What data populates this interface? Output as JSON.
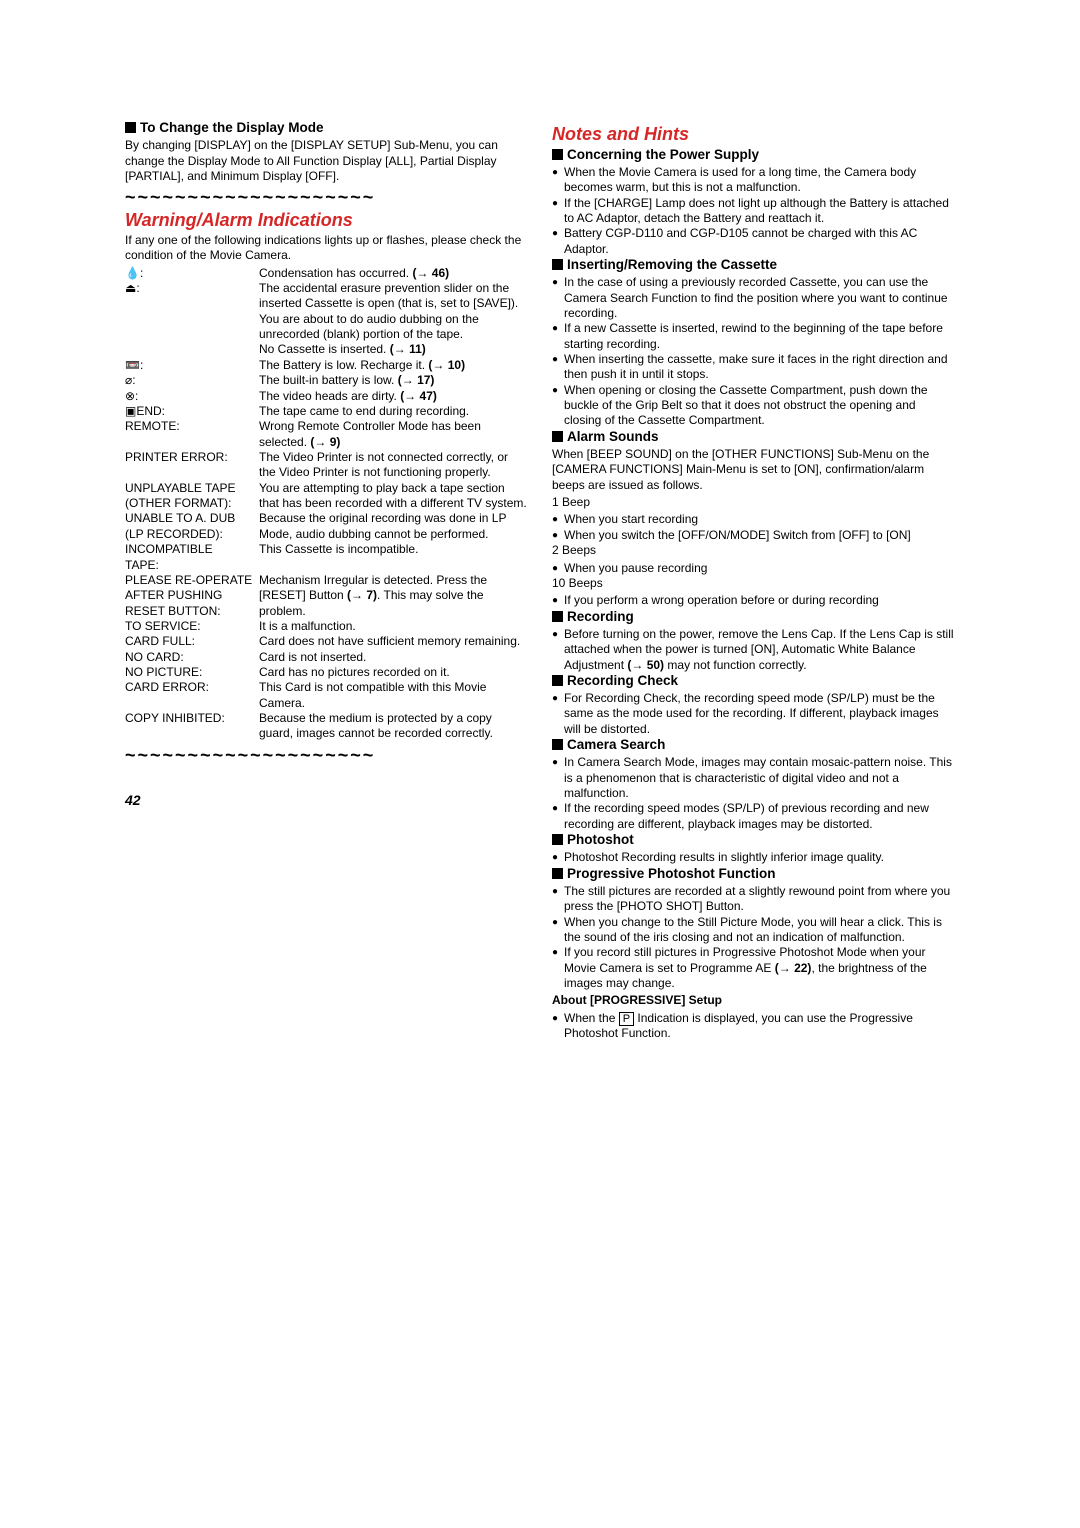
{
  "pageNumber": "42",
  "leftCol": {
    "displayMode": {
      "title": "To Change the Display Mode",
      "body": "By changing [DISPLAY] on the [DISPLAY SETUP] Sub-Menu, you can change the Display Mode to All Function Display [ALL], Partial Display [PARTIAL], and Minimum Display [OFF]."
    },
    "tildeRow": "~~~~~~~~~~~~~~~~~~~~",
    "warningHead": "Warning/Alarm Indications",
    "warningIntro": "If any one of the following indications lights up or flashes, please check the condition of the Movie Camera.",
    "warnings": [
      {
        "label": "💧:",
        "desc": "Condensation has occurred. ",
        "ref": "(→ 46)"
      },
      {
        "label": "⏏:",
        "desc": "The accidental erasure prevention slider on the inserted Cassette is open (that is, set to [SAVE]).\nYou are about to do audio dubbing on the unrecorded (blank) portion of the tape.\nNo Cassette is inserted. ",
        "ref": "(→ 11)"
      },
      {
        "label": "📼:",
        "desc": "The Battery is low. Recharge it. ",
        "ref": "(→ 10)"
      },
      {
        "label": "⌀:",
        "desc": "The built-in battery is low. ",
        "ref": "(→ 17)"
      },
      {
        "label": "⊗:",
        "desc": "The video heads are dirty. ",
        "ref": "(→ 47)"
      },
      {
        "label": "▣END:",
        "desc": "The tape came to end during recording."
      },
      {
        "label": "REMOTE:",
        "desc": "Wrong Remote Controller Mode has been selected. ",
        "ref": "(→ 9)"
      },
      {
        "label": "PRINTER ERROR:",
        "desc": "The Video Printer is not connected correctly, or the Video Printer is not functioning properly."
      },
      {
        "label": "UNPLAYABLE TAPE\n(OTHER FORMAT):",
        "desc": "You are attempting to play back a tape section that has been recorded with a different TV system."
      },
      {
        "label": "UNABLE TO A. DUB\n(LP RECORDED):",
        "desc": "Because the original recording was done in LP Mode, audio dubbing cannot be performed."
      },
      {
        "label": "INCOMPATIBLE\nTAPE:",
        "desc": "This Cassette is incompatible."
      },
      {
        "label": "PLEASE RE-OPERATE\nAFTER PUSHING\nRESET BUTTON:",
        "desc": "Mechanism Irregular is detected. Press the [RESET] Button ",
        "ref": "(→ 7)",
        "tail": ". This may solve the problem."
      },
      {
        "label": "TO SERVICE:",
        "desc": "It is a malfunction."
      },
      {
        "label": "CARD FULL:",
        "desc": "Card does not have sufficient memory remaining."
      },
      {
        "label": "NO CARD:",
        "desc": "Card is not inserted."
      },
      {
        "label": "NO PICTURE:",
        "desc": "Card has no pictures recorded on it."
      },
      {
        "label": "CARD ERROR:",
        "desc": "This Card is not compatible with this Movie Camera."
      },
      {
        "label": "COPY INHIBITED:",
        "desc": "Because the medium is protected by a copy guard, images cannot be recorded correctly."
      }
    ]
  },
  "rightCol": {
    "notesHead": "Notes and Hints",
    "sections": [
      {
        "title": "Concerning the Power Supply",
        "bullets": [
          {
            "text": "When the Movie Camera is used for a long time, the Camera body becomes warm, but this is not a malfunction."
          },
          {
            "text": "If the [CHARGE] Lamp does not light up although the Battery is attached to AC Adaptor, detach the Battery and reattach it."
          },
          {
            "text": "Battery CGP-D110 and CGP-D105 cannot be charged with this AC Adaptor."
          }
        ]
      },
      {
        "title": "Inserting/Removing the Cassette",
        "bullets": [
          {
            "text": "In the case of using a previously recorded Cassette, you can use the Camera Search Function to find the position where you want to continue recording."
          },
          {
            "text": "If a new Cassette is inserted, rewind to the beginning of the tape before starting recording."
          },
          {
            "text": "When inserting the cassette, make sure it faces in the right direction and then push it in until it stops."
          },
          {
            "text": "When opening or closing the Cassette Compartment, push down the buckle of the Grip Belt  so that it does not obstruct the opening and closing of the Cassette Compartment."
          }
        ]
      },
      {
        "title": "Alarm Sounds",
        "intro": "When [BEEP SOUND] on the [OTHER FUNCTIONS] Sub-Menu on the [CAMERA FUNCTIONS] Main-Menu is set to [ON], confirmation/alarm beeps are issued as follows.",
        "groups": [
          {
            "head": "1 Beep",
            "bullets": [
              {
                "text": "When you start recording"
              },
              {
                "text": "When you switch the [OFF/ON/MODE] Switch from [OFF] to [ON]"
              }
            ]
          },
          {
            "head": "2 Beeps",
            "bullets": [
              {
                "text": "When you pause recording"
              }
            ]
          },
          {
            "head": "10 Beeps",
            "bullets": [
              {
                "text": "If you perform a wrong operation before or during recording"
              }
            ]
          }
        ]
      },
      {
        "title": "Recording",
        "bullets": [
          {
            "text": "Before turning on the power, remove the Lens Cap. If the Lens Cap is still attached when the power is turned [ON], Automatic White Balance Adjustment ",
            "ref": "(→ 50)",
            "tail": " may not function correctly."
          }
        ]
      },
      {
        "title": "Recording Check",
        "bullets": [
          {
            "text": "For Recording Check, the recording speed mode (SP/LP) must be the same as the mode used for the recording. If different, playback images will be distorted."
          }
        ]
      },
      {
        "title": "Camera Search",
        "bullets": [
          {
            "text": "In Camera Search Mode, images may contain mosaic-pattern noise. This is a phenomenon that is characteristic of digital video and not a malfunction."
          },
          {
            "text": "If the recording speed modes (SP/LP) of previous recording and new recording are different, playback images may be distorted."
          }
        ]
      },
      {
        "title": "Photoshot",
        "bullets": [
          {
            "text": "Photoshot Recording results in slightly inferior image quality."
          }
        ]
      },
      {
        "title": "Progressive Photoshot Function",
        "bullets": [
          {
            "text": "The still pictures are recorded at a slightly rewound point from where you press the [PHOTO SHOT] Button."
          },
          {
            "text": "When you change to the Still Picture Mode, you will hear a click. This is the sound of the iris closing and not an indication of malfunction."
          },
          {
            "text": "If you record still pictures in Progressive Photoshot Mode when your Movie Camera is set to Programme AE ",
            "ref": "(→ 22)",
            "tail": ", the brightness of the images may change."
          }
        ],
        "subhead": "About [PROGRESSIVE] Setup",
        "subBullets": [
          {
            "pre": "When the ",
            "box": "P",
            "post": " Indication is displayed, you can use the Progressive Photoshot Function."
          }
        ]
      }
    ]
  }
}
